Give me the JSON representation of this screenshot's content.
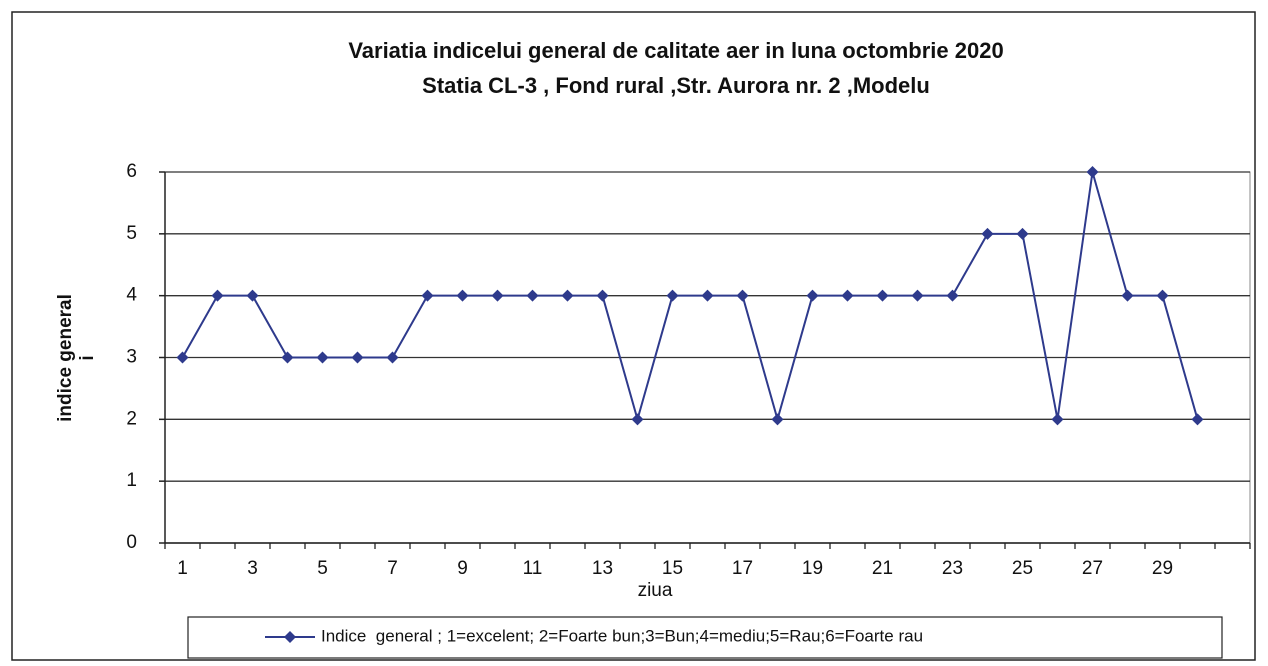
{
  "chart_data": {
    "type": "line",
    "title": "Variatia indicelui general de calitate aer in luna octombrie 2020",
    "subtitle": "Statia CL-3 , Fond rural ,Str. Aurora nr. 2 ,Modelu",
    "xlabel": "ziua",
    "ylabel": [
      "indice general",
      "i"
    ],
    "categories": [
      1,
      null,
      3,
      null,
      5,
      null,
      7,
      null,
      9,
      null,
      11,
      null,
      13,
      null,
      15,
      null,
      17,
      null,
      19,
      null,
      21,
      null,
      23,
      null,
      25,
      null,
      27,
      null,
      29,
      null,
      null
    ],
    "series": [
      {
        "name": "Indice  general ; 1=excelent; 2=Foarte bun;3=Bun;4=mediu;5=Rau;6=Foarte rau",
        "color": "#2e3a8c",
        "values": [
          3,
          4,
          4,
          3,
          3,
          3,
          3,
          4,
          4,
          4,
          4,
          4,
          4,
          2,
          4,
          4,
          4,
          2,
          4,
          4,
          4,
          4,
          4,
          5,
          5,
          2,
          6,
          4,
          4,
          2,
          null
        ]
      }
    ],
    "ylim": [
      0,
      6
    ],
    "yticks": [
      0,
      1,
      2,
      3,
      4,
      5,
      6
    ],
    "grid": true,
    "legend": "bottom"
  }
}
